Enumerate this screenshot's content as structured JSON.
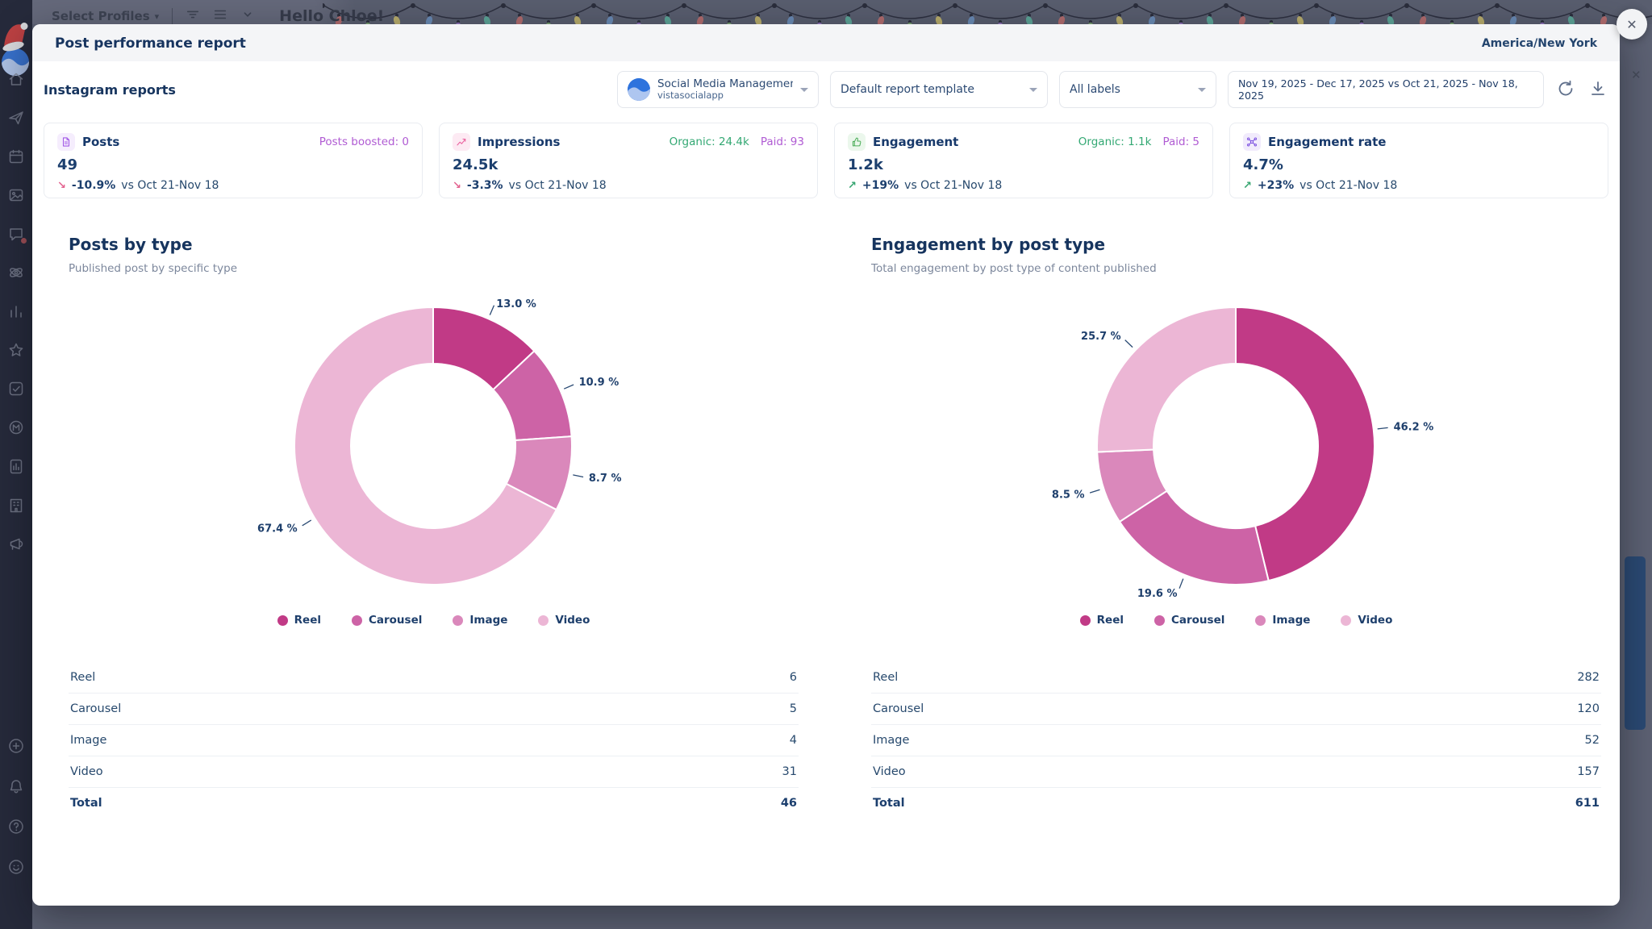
{
  "backdrop": {
    "toolbar": {
      "select_profiles": "Select Profiles",
      "greeting": "Hello Chloe!"
    },
    "garland_colors": [
      "#c47070",
      "#7fae74",
      "#cdbd6e",
      "#6e94c4",
      "#9a77c9",
      "#5fb3a1"
    ],
    "close_glyph": "✕"
  },
  "sidebar": {
    "icons": [
      "home-icon",
      "publish-icon",
      "calendar-icon",
      "media-icon",
      "inbox-icon",
      "connect-icon",
      "analytics-icon",
      "reviews-icon",
      "tasks-icon",
      "brand-icon",
      "reports-icon",
      "company-icon",
      "advocacy-icon"
    ],
    "bottom_icons": [
      "add-icon",
      "notifications-icon",
      "help-icon",
      "profile-icon"
    ]
  },
  "modal": {
    "title": "Post performance report",
    "timezone": "America/New York",
    "close_glyph": "✕",
    "section_title": "Instagram reports",
    "controls": {
      "profile_name": "Social Media Management Too",
      "profile_handle": "vistasocialapp",
      "template": "Default report template",
      "labels": "All labels",
      "date_range": "Nov 19, 2025 - Dec 17, 2025 vs Oct 21, 2025 - Nov 18, 2025"
    },
    "kpis": [
      {
        "title": "Posts",
        "icon": "posts-icon",
        "icon_color": "#a259e6",
        "icon_bg": "#f5edfd",
        "value": "49",
        "side": [
          {
            "text": "Posts boosted: 0",
            "color": "#b05bd3"
          }
        ],
        "direction": "down",
        "change": "-10.9%",
        "vs": "vs Oct 21-Nov 18"
      },
      {
        "title": "Impressions",
        "icon": "impressions-icon",
        "icon_color": "#ea5e9c",
        "icon_bg": "#fdeaf3",
        "value": "24.5k",
        "side": [
          {
            "text": "Organic: 24.4k",
            "color": "#33a873"
          },
          {
            "text": "Paid: 93",
            "color": "#b05bd3"
          }
        ],
        "direction": "down",
        "change": "-3.3%",
        "vs": "vs Oct 21-Nov 18"
      },
      {
        "title": "Engagement",
        "icon": "engagement-icon",
        "icon_color": "#4fae5c",
        "icon_bg": "#ebf7ec",
        "value": "1.2k",
        "side": [
          {
            "text": "Organic: 1.1k",
            "color": "#33a873"
          },
          {
            "text": "Paid: 5",
            "color": "#b05bd3"
          }
        ],
        "direction": "up",
        "change": "+19%",
        "vs": "vs Oct 21-Nov 18"
      },
      {
        "title": "Engagement rate",
        "icon": "engagement-rate-icon",
        "icon_color": "#7d52e0",
        "icon_bg": "#f1ebfc",
        "value": "4.7%",
        "side": [],
        "direction": "up",
        "change": "+23%",
        "vs": "vs Oct 21-Nov 18"
      }
    ]
  },
  "chart_data": [
    {
      "type": "pie",
      "title": "Posts by type",
      "subtitle": "Published post by specific type",
      "categories": [
        "Reel",
        "Carousel",
        "Image",
        "Video"
      ],
      "values": [
        13.0,
        10.9,
        8.7,
        67.4
      ],
      "counts": [
        6,
        5,
        4,
        31
      ],
      "total_label": "Total",
      "total": 46,
      "colors": [
        "#c13a86",
        "#cd63a6",
        "#da88bb",
        "#ecb6d5"
      ],
      "donut": true,
      "start_angle": 0,
      "legend_position": "bottom"
    },
    {
      "type": "pie",
      "title": "Engagement by post type",
      "subtitle": "Total engagement by post type of content published",
      "categories": [
        "Reel",
        "Carousel",
        "Image",
        "Video"
      ],
      "values": [
        46.2,
        19.6,
        8.5,
        25.7
      ],
      "counts": [
        282,
        120,
        52,
        157
      ],
      "total_label": "Total",
      "total": 611,
      "colors": [
        "#c13a86",
        "#cd63a6",
        "#da88bb",
        "#ecb6d5"
      ],
      "donut": true,
      "start_angle": 0,
      "legend_position": "bottom"
    }
  ],
  "theme": {
    "navy": "#1c3f6e",
    "green": "#35a570",
    "pink_down": "#e36490",
    "purple": "#b05bd3"
  }
}
